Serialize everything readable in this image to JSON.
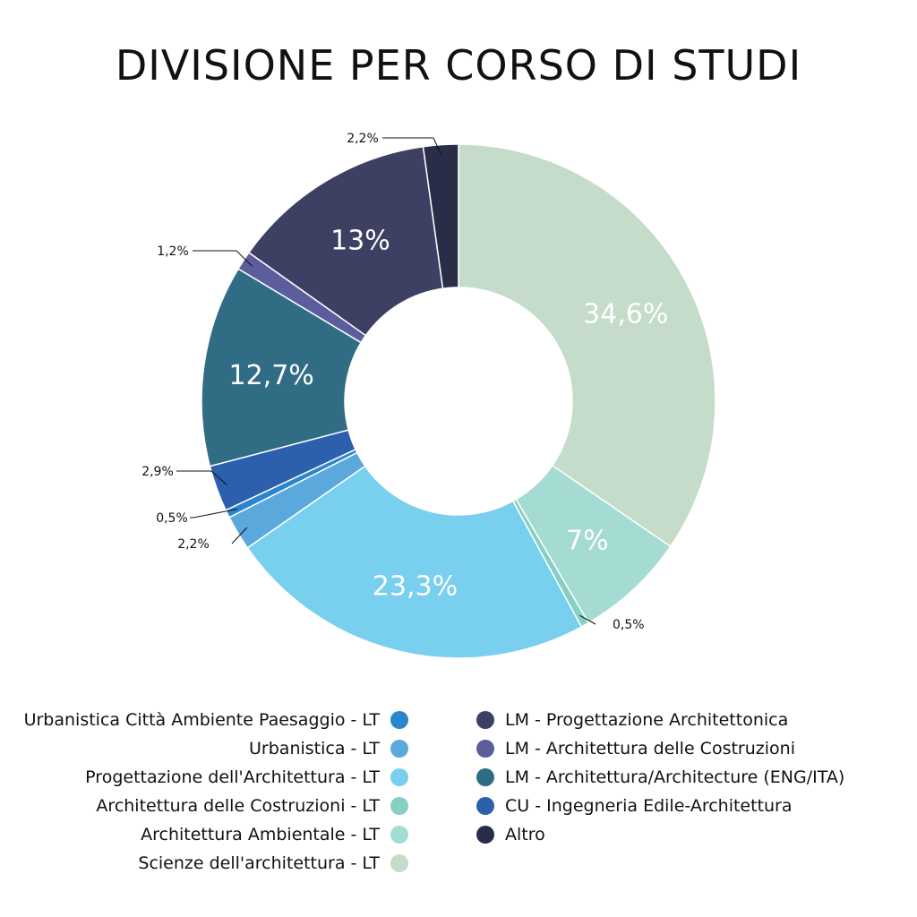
{
  "chart_data": {
    "type": "pie",
    "title": "DIVISIONE PER CORSO DI STUDI",
    "slices": [
      {
        "name": "Scienze dell'architettura - LT",
        "value": 34.6,
        "label": "34,6%",
        "color": "#c4dcc9"
      },
      {
        "name": "Architettura Ambientale - LT",
        "value": 7.0,
        "label": "7%",
        "color": "#a4dbd3"
      },
      {
        "name": "Architettura delle Costruzioni - LT",
        "value": 0.5,
        "label": "0,5%",
        "color": "#86cfc3"
      },
      {
        "name": "Progettazione dell'Architettura - LT",
        "value": 23.3,
        "label": "23,3%",
        "color": "#79cfee"
      },
      {
        "name": "Urbanistica - LT",
        "value": 2.2,
        "label": "2,2%",
        "color": "#5aa8dc"
      },
      {
        "name": "Urbanistica Città Ambiente Paesaggio - LT",
        "value": 0.5,
        "label": "0,5%",
        "color": "#2a86cc"
      },
      {
        "name": "CU - Ingegneria Edile-Architettura",
        "value": 2.9,
        "label": "2,9%",
        "color": "#2c5fac"
      },
      {
        "name": "LM - Architettura/Architecture (ENG/ITA)",
        "value": 12.7,
        "label": "12,7%",
        "color": "#316c85"
      },
      {
        "name": "LM - Architettura delle Costruzioni",
        "value": 1.2,
        "label": "1,2%",
        "color": "#5c5d9c"
      },
      {
        "name": "LM - Progettazione Architettonica",
        "value": 13.0,
        "label": "13%",
        "color": "#3d4062"
      },
      {
        "name": "Altro",
        "value": 2.2,
        "label": "2,2%",
        "color": "#2a2d48"
      }
    ],
    "legend": {
      "left": [
        {
          "label": "Urbanistica Città Ambiente Paesaggio - LT",
          "color": "#2a86cc"
        },
        {
          "label": "Urbanistica - LT",
          "color": "#5aa8dc"
        },
        {
          "label": "Progettazione dell'Architettura - LT",
          "color": "#79cfee"
        },
        {
          "label": "Architettura delle Costruzioni - LT",
          "color": "#86cfc3"
        },
        {
          "label": "Architettura Ambientale - LT",
          "color": "#a4dbd3"
        },
        {
          "label": "Scienze dell'architettura - LT",
          "color": "#c4dcc9"
        }
      ],
      "right": [
        {
          "label": "LM - Progettazione Architettonica",
          "color": "#3d4062"
        },
        {
          "label": "LM - Architettura delle Costruzioni",
          "color": "#5c5d9c"
        },
        {
          "label": "LM - Architettura/Architecture (ENG/ITA)",
          "color": "#316c85"
        },
        {
          "label": "CU - Ingegneria Edile-Architettura",
          "color": "#2c5fac"
        },
        {
          "label": "Altro",
          "color": "#2a2d48"
        }
      ]
    }
  }
}
